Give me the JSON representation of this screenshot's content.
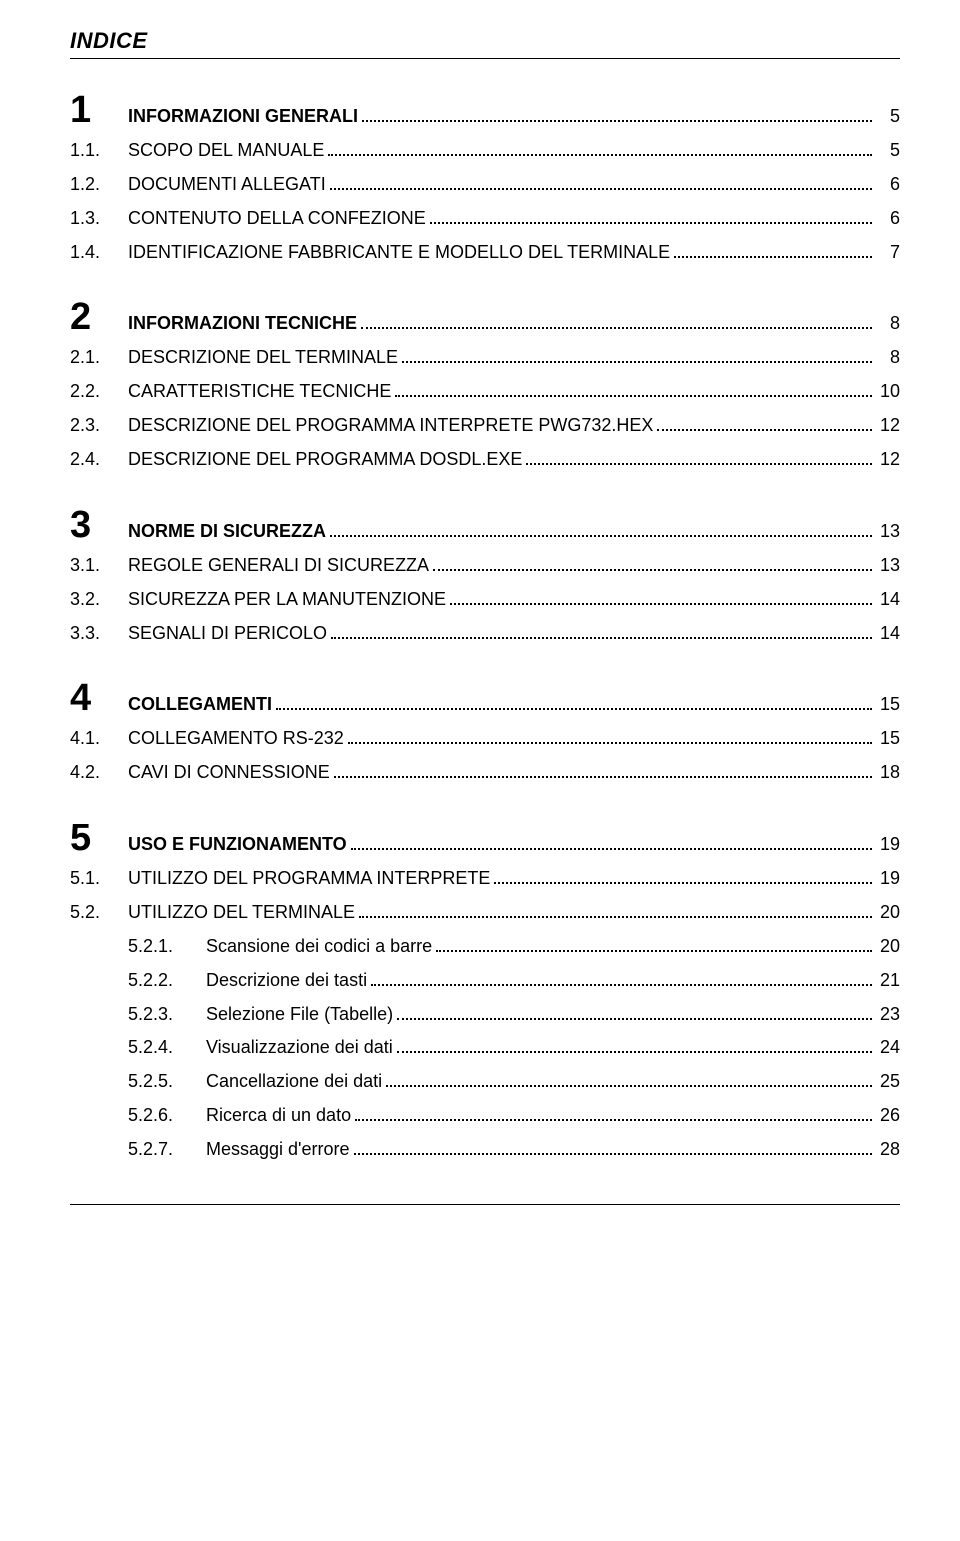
{
  "title": "INDICE",
  "sections": [
    {
      "num": "1",
      "heading": "INFORMAZIONI GENERALI",
      "page": "5",
      "items": [
        {
          "num": "1.1.",
          "label": "SCOPO DEL MANUALE",
          "page": "5"
        },
        {
          "num": "1.2.",
          "label": "DOCUMENTI ALLEGATI",
          "page": "6"
        },
        {
          "num": "1.3.",
          "label": "CONTENUTO DELLA CONFEZIONE",
          "page": "6"
        },
        {
          "num": "1.4.",
          "label": "IDENTIFICAZIONE FABBRICANTE E MODELLO DEL TERMINALE",
          "page": "7"
        }
      ]
    },
    {
      "num": "2",
      "heading": "INFORMAZIONI TECNICHE",
      "page": "8",
      "items": [
        {
          "num": "2.1.",
          "label": "DESCRIZIONE DEL TERMINALE",
          "page": "8"
        },
        {
          "num": "2.2.",
          "label": "CARATTERISTICHE TECNICHE",
          "page": "10"
        },
        {
          "num": "2.3.",
          "label": "DESCRIZIONE DEL PROGRAMMA INTERPRETE PWG732.HEX",
          "page": "12"
        },
        {
          "num": "2.4.",
          "label": "DESCRIZIONE DEL PROGRAMMA DOSDL.EXE",
          "page": "12"
        }
      ]
    },
    {
      "num": "3",
      "heading": "NORME DI SICUREZZA",
      "page": "13",
      "items": [
        {
          "num": "3.1.",
          "label": "REGOLE GENERALI DI SICUREZZA",
          "page": "13"
        },
        {
          "num": "3.2.",
          "label": "SICUREZZA PER LA MANUTENZIONE",
          "page": "14"
        },
        {
          "num": "3.3.",
          "label": "SEGNALI DI PERICOLO",
          "page": "14"
        }
      ]
    },
    {
      "num": "4",
      "heading": "COLLEGAMENTI",
      "page": "15",
      "items": [
        {
          "num": "4.1.",
          "label": "COLLEGAMENTO RS-232",
          "page": "15"
        },
        {
          "num": "4.2.",
          "label": "CAVI DI CONNESSIONE",
          "page": "18"
        }
      ]
    },
    {
      "num": "5",
      "heading": "USO E FUNZIONAMENTO",
      "page": "19",
      "items": [
        {
          "num": "5.1.",
          "label": "UTILIZZO DEL PROGRAMMA INTERPRETE",
          "page": "19"
        },
        {
          "num": "5.2.",
          "label": "UTILIZZO DEL TERMINALE",
          "page": "20"
        }
      ],
      "subitems": [
        {
          "num": "5.2.1.",
          "label": "Scansione dei codici a barre",
          "page": "20"
        },
        {
          "num": "5.2.2.",
          "label": "Descrizione dei tasti",
          "page": "21"
        },
        {
          "num": "5.2.3.",
          "label": "Selezione File (Tabelle)",
          "page": "23"
        },
        {
          "num": "5.2.4.",
          "label": "Visualizzazione dei dati",
          "page": "24"
        },
        {
          "num": "5.2.5.",
          "label": "Cancellazione dei dati",
          "page": "25"
        },
        {
          "num": "5.2.6.",
          "label": "Ricerca di un dato",
          "page": "26"
        },
        {
          "num": "5.2.7.",
          "label": "Messaggi d'errore",
          "page": "28"
        }
      ]
    }
  ]
}
